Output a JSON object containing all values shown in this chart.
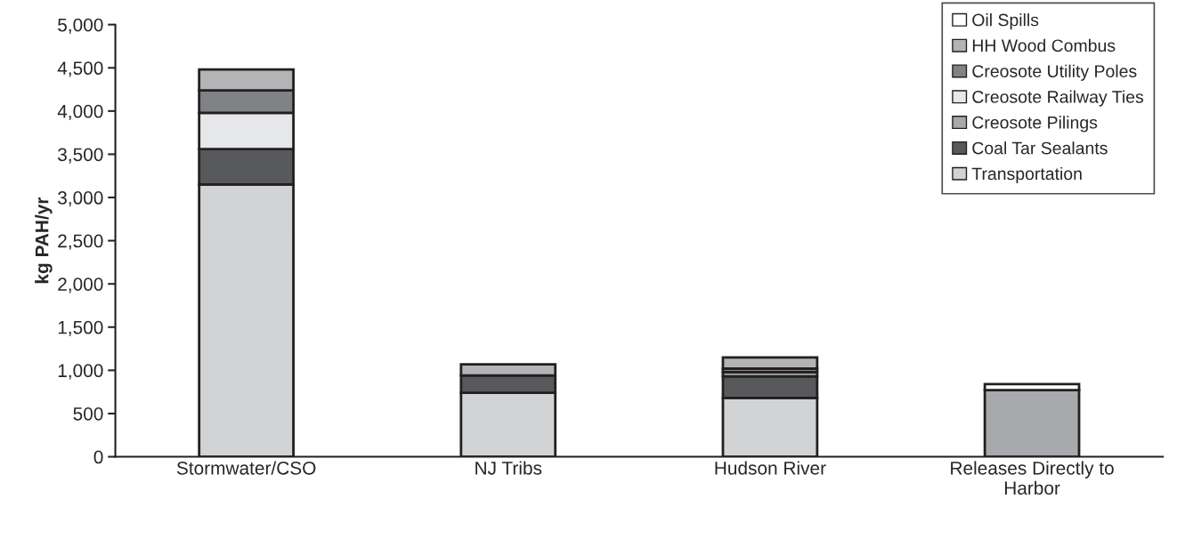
{
  "chart_data": {
    "type": "bar",
    "stacked": true,
    "ylabel": "kg PAH/yr",
    "categories": [
      "Stormwater/CSO",
      "NJ Tribs",
      "Hudson River",
      "Releases Directly to\nHarbor"
    ],
    "series": [
      {
        "name": "Transportation",
        "color": "#d1d3d4",
        "values": [
          3150,
          740,
          680,
          null
        ]
      },
      {
        "name": "Coal Tar Sealants",
        "color": "#58595b",
        "values": [
          410,
          200,
          250,
          null
        ]
      },
      {
        "name": "Creosote Pilings",
        "color": "#a7a9ac",
        "values": [
          null,
          null,
          50,
          770
        ]
      },
      {
        "name": "Creosote Railway Ties",
        "color": "#e6e7e8",
        "values": [
          420,
          null,
          null,
          null
        ]
      },
      {
        "name": "Creosote Utility Poles",
        "color": "#808285",
        "values": [
          260,
          null,
          40,
          null
        ]
      },
      {
        "name": "HH Wood Combus",
        "color": "#b3b4b6",
        "values": [
          240,
          130,
          130,
          null
        ]
      },
      {
        "name": "Oil Spills",
        "color": "#ffffff",
        "values": [
          null,
          null,
          null,
          70
        ]
      }
    ],
    "ylim": [
      0,
      5000
    ],
    "yticks": [
      {
        "value": 0,
        "label": "0"
      },
      {
        "value": 500,
        "label": "500"
      },
      {
        "value": 1000,
        "label": "1,000"
      },
      {
        "value": 1500,
        "label": "1,500"
      },
      {
        "value": 2000,
        "label": "2,000"
      },
      {
        "value": 2500,
        "label": "2,500"
      },
      {
        "value": 3000,
        "label": "3,000"
      },
      {
        "value": 3500,
        "label": "3,500"
      },
      {
        "value": 4000,
        "label": "4,000"
      },
      {
        "value": 4500,
        "label": "4,500"
      },
      {
        "value": 5000,
        "label": "5,000"
      }
    ],
    "grid": false,
    "legend": "top right"
  }
}
